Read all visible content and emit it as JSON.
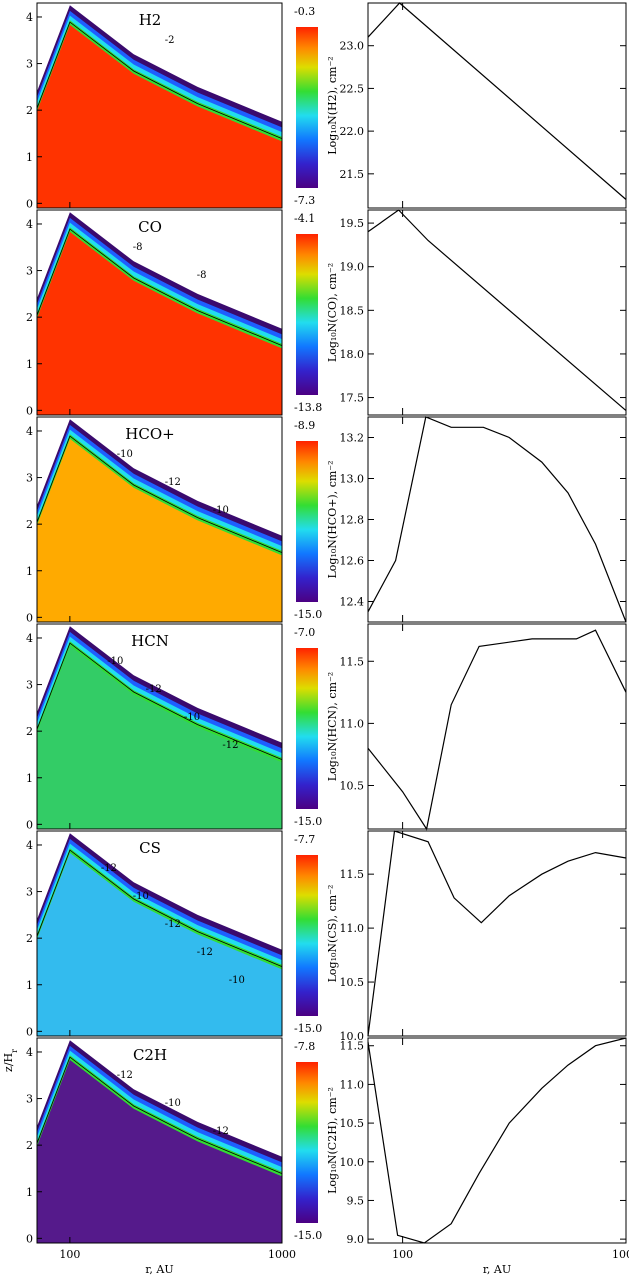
{
  "shared": {
    "contour_xlabel": "r, AU",
    "contour_ylabel": "z/H",
    "contour_ylabel_sub": "r",
    "profile_xlabel": "r, AU",
    "xtick_labels": [
      "100",
      "1000"
    ],
    "xlim": [
      70,
      1000
    ],
    "contour_ylim": [
      -0.1,
      4.3
    ],
    "contour_yticks": [
      0,
      1,
      2,
      3,
      4
    ]
  },
  "panels": [
    {
      "species": "H2",
      "colorbar_max": "-0.3",
      "colorbar_min": "-7.3",
      "profile_ylabel": "Log₁₀N(H2), cm⁻²",
      "contour_labels": [
        "-2"
      ],
      "surface": [
        [
          70,
          2.4
        ],
        [
          100,
          4.25
        ],
        [
          200,
          3.2
        ],
        [
          400,
          2.5
        ],
        [
          1000,
          1.75
        ]
      ],
      "bulk_color": "#ff3300",
      "profile": {
        "ylim": [
          21.1,
          23.5
        ],
        "yticks": [
          21.5,
          22.0,
          22.5,
          23.0
        ],
        "ytick_labels": [
          "21.5",
          "22.0",
          "22.5",
          "23.0"
        ],
        "x": [
          70,
          97,
          1000
        ],
        "y": [
          23.1,
          23.5,
          21.2
        ]
      }
    },
    {
      "species": "CO",
      "colorbar_max": "-4.1",
      "colorbar_min": "-13.8",
      "profile_ylabel": "Log₁₀N(CO), cm⁻²",
      "contour_labels": [
        "-8",
        "-8"
      ],
      "surface": [
        [
          70,
          2.4
        ],
        [
          100,
          4.25
        ],
        [
          200,
          3.2
        ],
        [
          400,
          2.5
        ],
        [
          1000,
          1.75
        ]
      ],
      "bulk_color": "#ff3300",
      "profile": {
        "ylim": [
          17.3,
          19.65
        ],
        "yticks": [
          17.5,
          18.0,
          18.5,
          19.0,
          19.5
        ],
        "ytick_labels": [
          "17.5",
          "18.0",
          "18.5",
          "19.0",
          "19.5"
        ],
        "x": [
          70,
          96,
          130,
          1000
        ],
        "y": [
          19.4,
          19.65,
          19.3,
          17.35
        ]
      }
    },
    {
      "species": "HCO+",
      "colorbar_max": "-8.9",
      "colorbar_min": "-15.0",
      "profile_ylabel": "Log₁₀N(HCO+), cm⁻²",
      "contour_labels": [
        "-10",
        "-12",
        "-10"
      ],
      "surface": [
        [
          70,
          2.4
        ],
        [
          100,
          4.25
        ],
        [
          200,
          3.2
        ],
        [
          400,
          2.5
        ],
        [
          1000,
          1.75
        ]
      ],
      "bulk_color": "#ffaa00",
      "profile": {
        "ylim": [
          12.3,
          13.3
        ],
        "yticks": [
          12.4,
          12.6,
          12.8,
          13.0,
          13.2
        ],
        "ytick_labels": [
          "12.4",
          "12.6",
          "12.8",
          "13.0",
          "13.2"
        ],
        "x": [
          70,
          93,
          127,
          165,
          230,
          300,
          420,
          550,
          730,
          1000
        ],
        "y": [
          12.35,
          12.6,
          13.3,
          13.25,
          13.25,
          13.2,
          13.08,
          12.93,
          12.68,
          12.3
        ]
      }
    },
    {
      "species": "HCN",
      "colorbar_max": "-7.0",
      "colorbar_min": "-15.0",
      "profile_ylabel": "Log₁₀N(HCN), cm⁻²",
      "contour_labels": [
        "-10",
        "-12",
        "-10",
        "-12"
      ],
      "surface": [
        [
          70,
          2.4
        ],
        [
          100,
          4.25
        ],
        [
          200,
          3.2
        ],
        [
          400,
          2.5
        ],
        [
          1000,
          1.75
        ]
      ],
      "bulk_color": "#33cc66",
      "profile": {
        "ylim": [
          10.15,
          11.8
        ],
        "yticks": [
          10.5,
          11.0,
          11.5
        ],
        "ytick_labels": [
          "10.5",
          "11.0",
          "11.5"
        ],
        "x": [
          70,
          100,
          128,
          165,
          220,
          380,
          600,
          730,
          1000
        ],
        "y": [
          10.8,
          10.45,
          10.15,
          11.15,
          11.62,
          11.68,
          11.68,
          11.75,
          11.25
        ]
      }
    },
    {
      "species": "CS",
      "colorbar_max": "-7.7",
      "colorbar_min": "-15.0",
      "profile_ylabel": "Log₁₀N(CS), cm⁻²",
      "contour_labels": [
        "-12",
        "-10",
        "-12",
        "-12",
        "-10"
      ],
      "surface": [
        [
          70,
          2.4
        ],
        [
          100,
          4.25
        ],
        [
          200,
          3.2
        ],
        [
          400,
          2.5
        ],
        [
          1000,
          1.75
        ]
      ],
      "bulk_color": "#33bbee",
      "profile": {
        "ylim": [
          10.0,
          11.9
        ],
        "yticks": [
          10.0,
          10.5,
          11.0,
          11.5
        ],
        "ytick_labels": [
          "10.0",
          "10.5",
          "11.0",
          "11.5"
        ],
        "x": [
          70,
          92,
          130,
          170,
          225,
          300,
          420,
          550,
          730,
          1000
        ],
        "y": [
          10.0,
          11.9,
          11.8,
          11.28,
          11.05,
          11.3,
          11.5,
          11.62,
          11.7,
          11.65
        ]
      }
    },
    {
      "species": "C2H",
      "colorbar_max": "-7.8",
      "colorbar_min": "-15.0",
      "profile_ylabel": "Log₁₀N(C2H), cm⁻²",
      "contour_labels": [
        "-12",
        "-10",
        "-12"
      ],
      "surface": [
        [
          70,
          2.4
        ],
        [
          100,
          4.25
        ],
        [
          200,
          3.2
        ],
        [
          400,
          2.5
        ],
        [
          1000,
          1.75
        ]
      ],
      "bulk_color": "#551a8b",
      "profile": {
        "ylim": [
          8.95,
          11.6
        ],
        "yticks": [
          9.0,
          9.5,
          10.0,
          10.5,
          11.0,
          11.5
        ],
        "ytick_labels": [
          "9.0",
          "9.5",
          "10.0",
          "10.5",
          "11.0",
          "11.5"
        ],
        "x": [
          70,
          95,
          125,
          165,
          220,
          300,
          420,
          550,
          730,
          1000
        ],
        "y": [
          11.55,
          9.05,
          8.95,
          9.2,
          9.85,
          10.5,
          10.95,
          11.25,
          11.5,
          11.6
        ]
      }
    }
  ],
  "chart_data": {
    "type": "line",
    "x": [
      70,
      100,
      1000
    ],
    "xlabel": "r, AU",
    "series": [
      {
        "name": "H2",
        "x": [
          70,
          97,
          1000
        ],
        "values": [
          23.1,
          23.5,
          21.2
        ]
      },
      {
        "name": "CO",
        "x": [
          70,
          96,
          130,
          1000
        ],
        "values": [
          19.4,
          19.65,
          19.3,
          17.35
        ]
      },
      {
        "name": "HCO+",
        "x": [
          70,
          93,
          127,
          165,
          230,
          300,
          420,
          550,
          730,
          1000
        ],
        "values": [
          12.35,
          12.6,
          13.3,
          13.25,
          13.25,
          13.2,
          13.08,
          12.93,
          12.68,
          12.3
        ]
      },
      {
        "name": "HCN",
        "x": [
          70,
          100,
          128,
          165,
          220,
          380,
          600,
          730,
          1000
        ],
        "values": [
          10.8,
          10.45,
          10.15,
          11.15,
          11.62,
          11.68,
          11.68,
          11.75,
          11.25
        ]
      },
      {
        "name": "CS",
        "x": [
          70,
          92,
          130,
          170,
          225,
          300,
          420,
          550,
          730,
          1000
        ],
        "values": [
          10.0,
          11.9,
          11.8,
          11.28,
          11.05,
          11.3,
          11.5,
          11.62,
          11.7,
          11.65
        ]
      },
      {
        "name": "C2H",
        "x": [
          70,
          95,
          125,
          165,
          220,
          300,
          420,
          550,
          730,
          1000
        ],
        "values": [
          11.55,
          9.05,
          8.95,
          9.2,
          9.85,
          10.5,
          10.95,
          11.25,
          11.5,
          11.6
        ]
      }
    ],
    "xscale": "log",
    "grid": false,
    "legend": "none"
  }
}
